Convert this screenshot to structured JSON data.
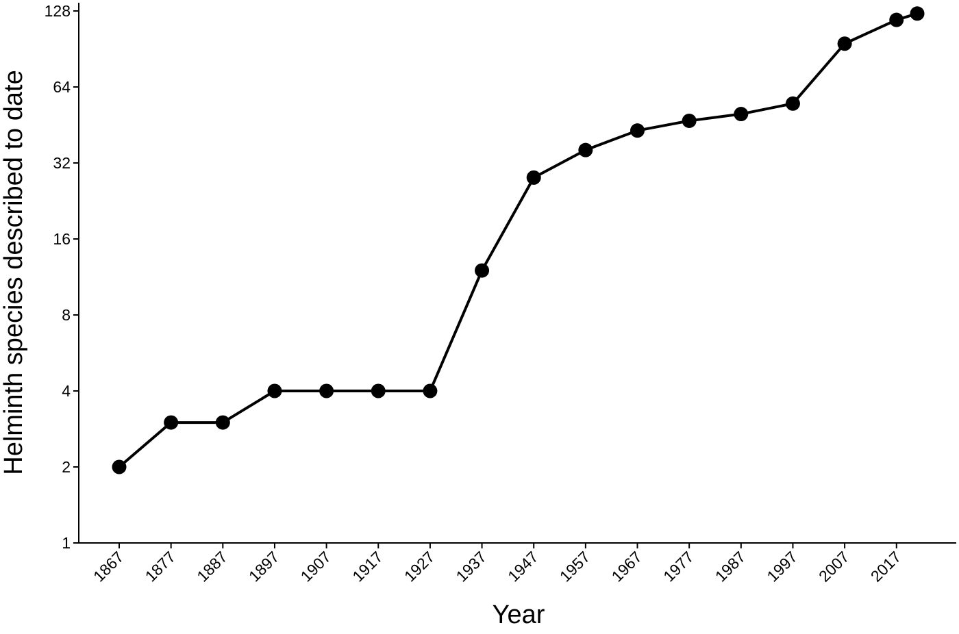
{
  "chart_data": {
    "type": "line",
    "x_label": "Year",
    "y_label": "Helminth species described to date",
    "x": [
      1867,
      1877,
      1887,
      1897,
      1907,
      1917,
      1927,
      1937,
      1947,
      1957,
      1967,
      1977,
      1987,
      1997,
      2007,
      2017,
      2021
    ],
    "values": [
      2,
      3,
      3,
      4,
      4,
      4,
      4,
      12,
      28,
      36,
      43,
      47,
      50,
      55,
      95,
      118,
      125
    ],
    "color": "#000000",
    "xlim": [
      1859.2,
      2028.4
    ],
    "xticks": [
      1867,
      1877,
      1887,
      1897,
      1907,
      1917,
      1927,
      1937,
      1947,
      1957,
      1967,
      1977,
      1987,
      1997,
      2007,
      2017
    ],
    "ylim": [
      1,
      128
    ],
    "yticks": [
      1,
      2,
      4,
      8,
      16,
      32,
      64,
      128
    ],
    "log_scale": true,
    "grid": false
  }
}
